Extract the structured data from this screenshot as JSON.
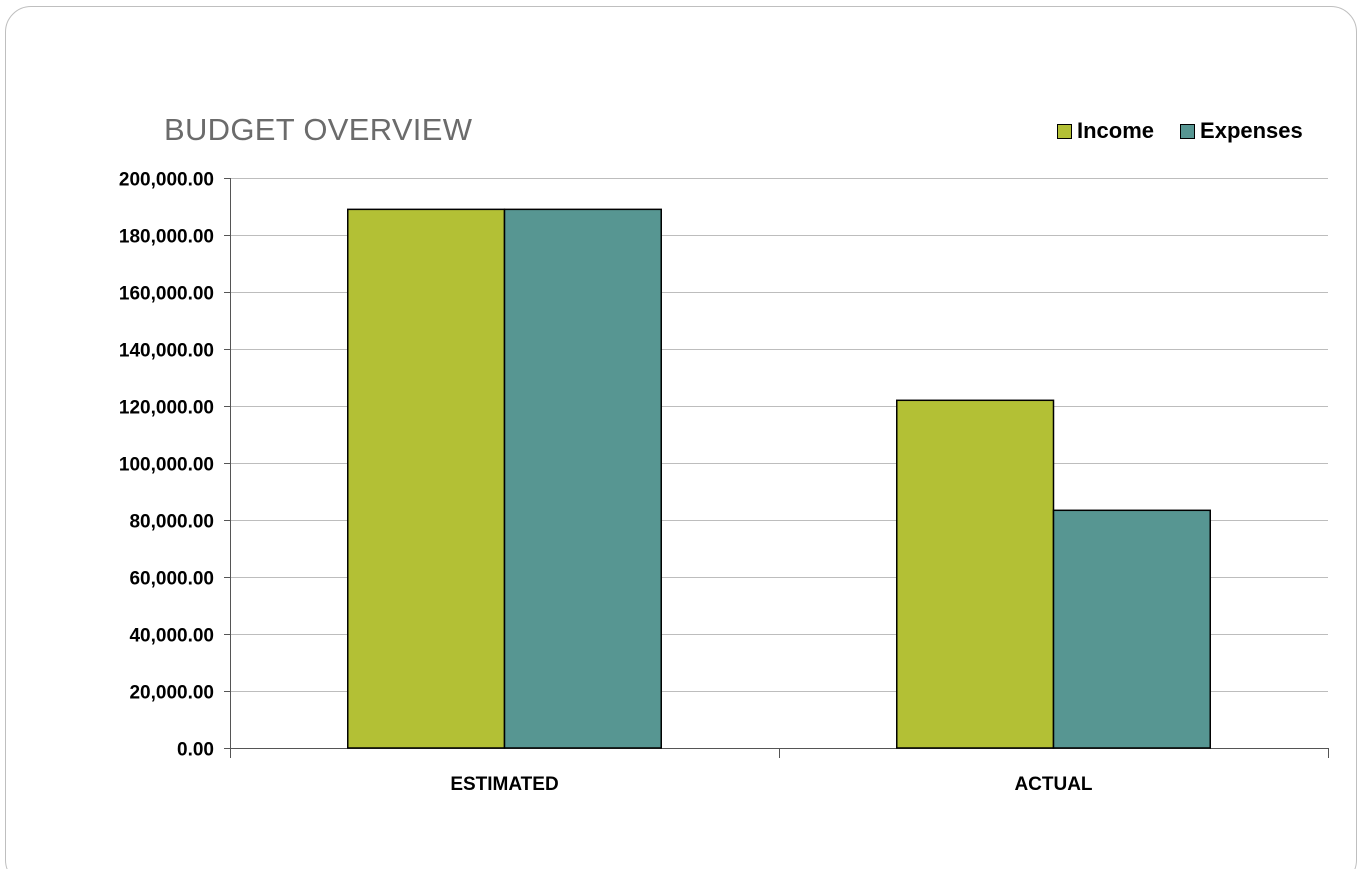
{
  "chart_data": {
    "type": "bar",
    "title": "BUDGET OVERVIEW",
    "categories": [
      "ESTIMATED",
      "ACTUAL"
    ],
    "series": [
      {
        "name": "Income",
        "color": "#b3c035",
        "values": [
          189000,
          122000
        ]
      },
      {
        "name": "Expenses",
        "color": "#579692",
        "values": [
          189000,
          83400
        ]
      }
    ],
    "ylim": [
      0,
      200000
    ],
    "yticks": [
      0,
      20000,
      40000,
      60000,
      80000,
      100000,
      120000,
      140000,
      160000,
      180000,
      200000
    ],
    "ytick_labels": [
      "0.00",
      "20,000.00",
      "40,000.00",
      "60,000.00",
      "80,000.00",
      "100,000.00",
      "120,000.00",
      "140,000.00",
      "160,000.00",
      "180,000.00",
      "200,000.00"
    ],
    "xlabel": "",
    "ylabel": "",
    "grid": true,
    "legend_position": "top-right"
  }
}
